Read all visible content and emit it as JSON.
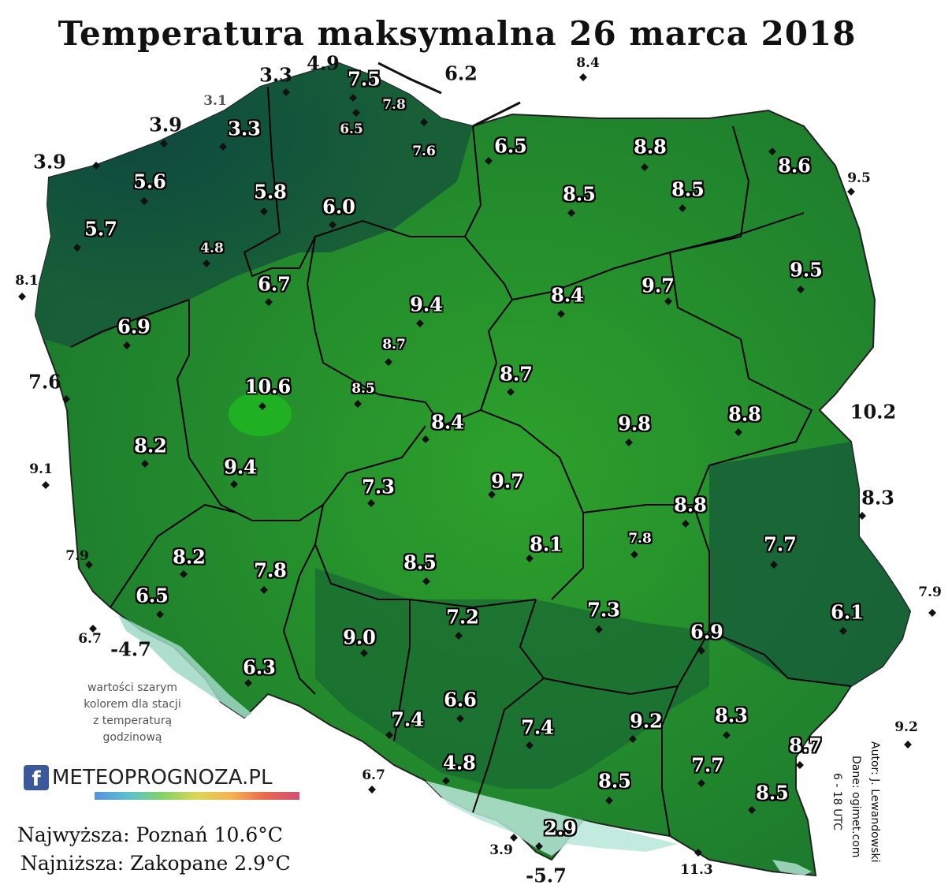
{
  "title": "Temperatura maksymalna 26 marca 2018",
  "note": [
    "wartości szarym",
    "kolorem dla stacji",
    "z temperaturą",
    "godzinową"
  ],
  "logo": {
    "fb": "f",
    "text": "METEOPROGNOZA.PL"
  },
  "stats": {
    "max": "Najwyższa: Poznań 10.6°C",
    "min": "Najniższa: Zakopane 2.9°C"
  },
  "credits": {
    "author": "Autor: J. Lewandowski",
    "source": "Dane: ogimet.com",
    "hours": "6 - 18 UTC"
  },
  "colors": {
    "land_dark": "#0f4a3e",
    "land_mid": "#1a7a2c",
    "land_light": "#2ea42a",
    "mountain": "#b8e6d8",
    "border": "#000000"
  },
  "stations": [
    {
      "v": "4.9"
    },
    {
      "v": "6.2"
    },
    {
      "v": "8.4"
    },
    {
      "v": "3.3"
    },
    {
      "v": "7.5"
    },
    {
      "v": "3.1"
    },
    {
      "v": "7.8"
    },
    {
      "v": "3.9"
    },
    {
      "v": "3.3"
    },
    {
      "v": "6.5"
    },
    {
      "v": "7.6"
    },
    {
      "v": "6.5"
    },
    {
      "v": "8.8"
    },
    {
      "v": "3.9"
    },
    {
      "v": "8.6"
    },
    {
      "v": "5.6"
    },
    {
      "v": "9.5"
    },
    {
      "v": "5.8"
    },
    {
      "v": "8.5"
    },
    {
      "v": "8.5"
    },
    {
      "v": "6.0"
    },
    {
      "v": "5.7"
    },
    {
      "v": "4.8"
    },
    {
      "v": "9.5"
    },
    {
      "v": "8.1"
    },
    {
      "v": "6.7"
    },
    {
      "v": "9.7"
    },
    {
      "v": "8.4"
    },
    {
      "v": "9.4"
    },
    {
      "v": "6.9"
    },
    {
      "v": "8.7"
    },
    {
      "v": "7.6"
    },
    {
      "v": "8.7"
    },
    {
      "v": "10.6"
    },
    {
      "v": "8.5"
    },
    {
      "v": "10.2"
    },
    {
      "v": "8.8"
    },
    {
      "v": "8.4"
    },
    {
      "v": "9.8"
    },
    {
      "v": "8.2"
    },
    {
      "v": "9.1"
    },
    {
      "v": "9.4"
    },
    {
      "v": "9.7"
    },
    {
      "v": "7.3"
    },
    {
      "v": "8.3"
    },
    {
      "v": "8.8"
    },
    {
      "v": "7.8"
    },
    {
      "v": "7.7"
    },
    {
      "v": "8.1"
    },
    {
      "v": "7.9"
    },
    {
      "v": "8.2"
    },
    {
      "v": "8.5"
    },
    {
      "v": "7.8"
    },
    {
      "v": "7.9"
    },
    {
      "v": "6.5"
    },
    {
      "v": "7.2"
    },
    {
      "v": "7.3"
    },
    {
      "v": "6.1"
    },
    {
      "v": "6.7"
    },
    {
      "v": "-4.7"
    },
    {
      "v": "9.0"
    },
    {
      "v": "6.9"
    },
    {
      "v": "6.3"
    },
    {
      "v": "6.6"
    },
    {
      "v": "7.4"
    },
    {
      "v": "7.4"
    },
    {
      "v": "9.2"
    },
    {
      "v": "8.3"
    },
    {
      "v": "9.2"
    },
    {
      "v": "8.7"
    },
    {
      "v": "6.7"
    },
    {
      "v": "4.8"
    },
    {
      "v": "7.7"
    },
    {
      "v": "8.5"
    },
    {
      "v": "8.5"
    },
    {
      "v": "2.9"
    },
    {
      "v": "3.9"
    },
    {
      "v": "-5.7"
    },
    {
      "v": "11.3"
    }
  ]
}
